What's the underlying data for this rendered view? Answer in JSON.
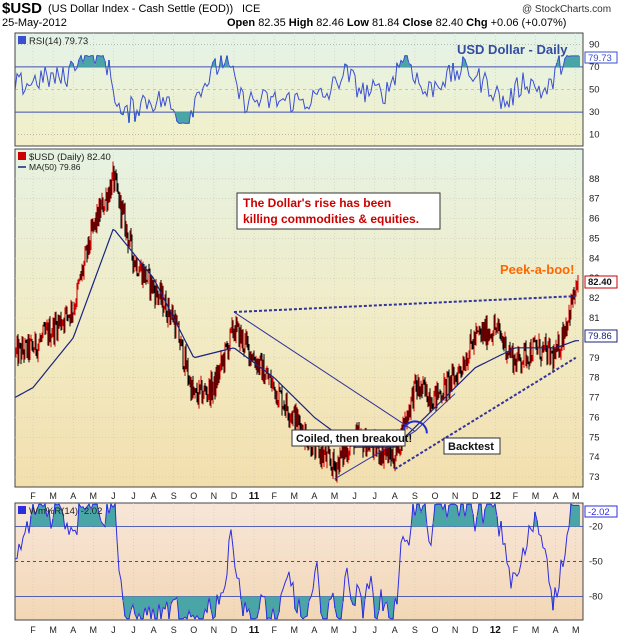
{
  "header": {
    "symbol": "$USD",
    "description": "(US Dollar Index - Cash Settle (EOD))",
    "exchange": "ICE",
    "date": "25-May-2012",
    "watermark": "@ StockCharts.com",
    "open_label": "Open",
    "open": "82.35",
    "high_label": "High",
    "high": "82.46",
    "low_label": "Low",
    "low": "81.84",
    "close_label": "Close",
    "close": "82.40",
    "chg_label": "Chg",
    "chg": "+0.06 (+0.07%)"
  },
  "colors": {
    "price": "#cc0000",
    "price_down": "#000000",
    "ma": "#1a237e",
    "rsi_line": "#3b4fd1",
    "willr_line": "#2d2de0",
    "fill": "#4aa6a6",
    "annotation": "#cc0000",
    "trend": "#333399",
    "peek": "#ff6600"
  },
  "rsi_panel": {
    "label": "RSI(14) 79.73",
    "title": "USD Dollar - Daily",
    "value_tag": "79.73",
    "levels": [
      90,
      70,
      50,
      30,
      10
    ],
    "ylim": [
      0,
      100
    ]
  },
  "price_panel": {
    "legend_price": "$USD (Daily) 82.40",
    "legend_ma": "MA(50) 79.86",
    "price_tag": "82.40",
    "ma_tag": "79.86",
    "ticks": [
      73,
      74,
      75,
      76,
      77,
      78,
      79,
      80,
      81,
      82,
      83,
      84,
      85,
      86,
      87,
      88
    ],
    "annotation_line1": "The Dollar's rise has been",
    "annotation_line2": "killing commodities & equities.",
    "peek": "Peek-a-boo!",
    "coiled": "Coiled, then breakout!",
    "backtest": "Backtest"
  },
  "willr_panel": {
    "label": "Wm%R(14) -2.02",
    "value_tag": "-2.02",
    "levels": [
      -20,
      -50,
      -80
    ],
    "ylim": [
      -100,
      0
    ]
  },
  "x_axis": {
    "months": [
      "F",
      "M",
      "A",
      "M",
      "J",
      "J",
      "A",
      "S",
      "O",
      "N",
      "D",
      "11",
      "F",
      "M",
      "A",
      "M",
      "J",
      "J",
      "A",
      "S",
      "O",
      "N",
      "D",
      "12",
      "F",
      "M",
      "A",
      "M"
    ]
  },
  "chart_data": {
    "type": "line",
    "title": "$USD (US Dollar Index - Cash Settle (EOD))",
    "period": "Feb 2010 - May 2012, daily",
    "series": [
      {
        "name": "$USD (Daily)",
        "points": [
          [
            "2010-02",
            79.5
          ],
          [
            "2010-03",
            80.5
          ],
          [
            "2010-04",
            81.5
          ],
          [
            "2010-05",
            85.5
          ],
          [
            "2010-06",
            88.0
          ],
          [
            "2010-07",
            84.0
          ],
          [
            "2010-08",
            82.5
          ],
          [
            "2010-09",
            81.0
          ],
          [
            "2010-10",
            77.0
          ],
          [
            "2010-11",
            77.5
          ],
          [
            "2010-12",
            80.5
          ],
          [
            "2011-01",
            79.0
          ],
          [
            "2011-02",
            77.5
          ],
          [
            "2011-03",
            76.0
          ],
          [
            "2011-04",
            74.5
          ],
          [
            "2011-05",
            73.5
          ],
          [
            "2011-06",
            75.0
          ],
          [
            "2011-07",
            74.5
          ],
          [
            "2011-08",
            74.0
          ],
          [
            "2011-09",
            77.5
          ],
          [
            "2011-10",
            77.0
          ],
          [
            "2011-11",
            78.0
          ],
          [
            "2011-12",
            80.0
          ],
          [
            "2012-01",
            80.5
          ],
          [
            "2012-02",
            78.8
          ],
          [
            "2012-03",
            79.5
          ],
          [
            "2012-04",
            79.0
          ],
          [
            "2012-05",
            82.4
          ]
        ]
      },
      {
        "name": "MA(50)",
        "points": [
          [
            "2010-02",
            77.5
          ],
          [
            "2010-04",
            80.0
          ],
          [
            "2010-06",
            85.5
          ],
          [
            "2010-08",
            83.0
          ],
          [
            "2010-10",
            79.0
          ],
          [
            "2010-12",
            79.5
          ],
          [
            "2011-02",
            78.0
          ],
          [
            "2011-04",
            76.0
          ],
          [
            "2011-06",
            74.5
          ],
          [
            "2011-08",
            74.5
          ],
          [
            "2011-10",
            76.5
          ],
          [
            "2011-12",
            78.5
          ],
          [
            "2012-02",
            79.5
          ],
          [
            "2012-04",
            79.5
          ],
          [
            "2012-05",
            79.86
          ]
        ]
      }
    ],
    "indicators": {
      "RSI(14)": 79.73,
      "Wm%R(14)": -2.02
    },
    "ohlc_last": {
      "open": 82.35,
      "high": 82.46,
      "low": 81.84,
      "close": 82.4,
      "chg": "+0.06 (+0.07%)"
    },
    "ylim": [
      72.5,
      89.5
    ],
    "grid": true,
    "legend": "top-left"
  }
}
